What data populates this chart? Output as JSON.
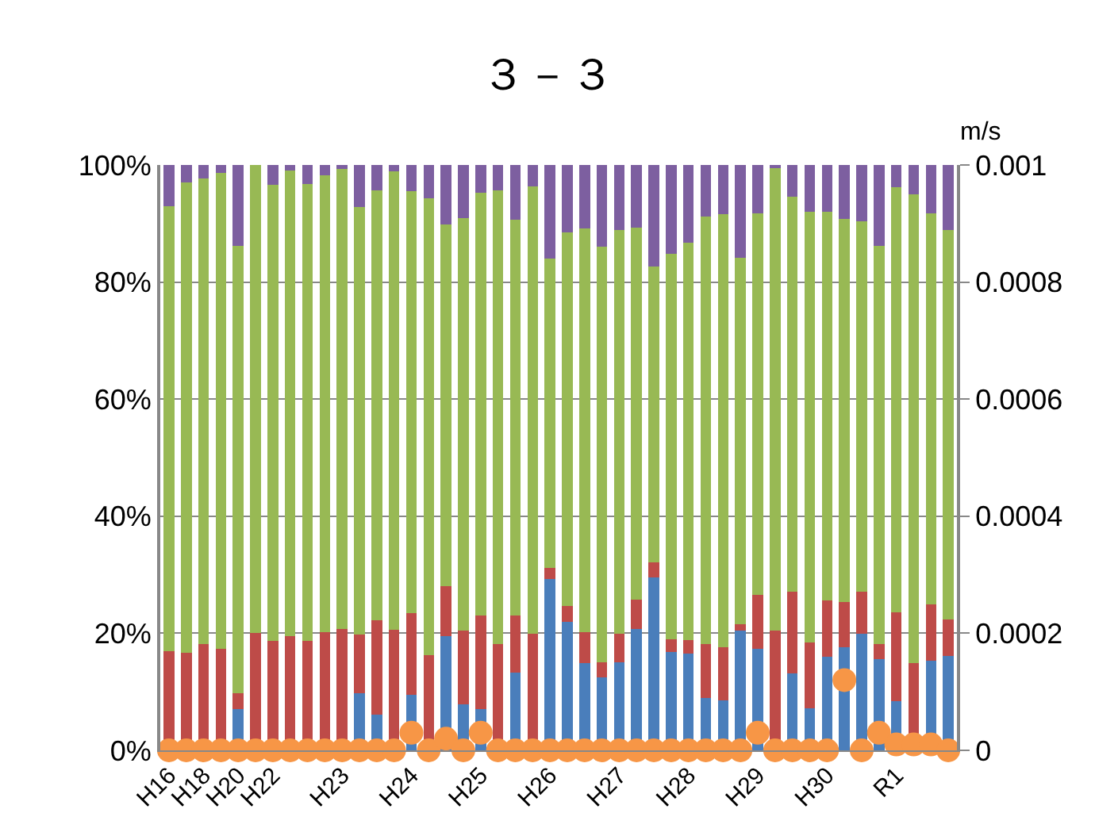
{
  "chart_data": {
    "type": "bar",
    "stacked": true,
    "title": "３－３",
    "y2label": "m/s",
    "categories": [
      "H16",
      null,
      "H18",
      null,
      "H20",
      null,
      "H22",
      null,
      null,
      null,
      "H23",
      null,
      null,
      null,
      "H24",
      null,
      null,
      null,
      "H25",
      null,
      null,
      null,
      "H26",
      null,
      null,
      null,
      "H27",
      null,
      null,
      null,
      "H28",
      null,
      null,
      null,
      "H29",
      null,
      null,
      null,
      "H30",
      null,
      null,
      null,
      "R1",
      null,
      null,
      null
    ],
    "series": [
      {
        "color": "#4a7ebb",
        "values": [
          0,
          0,
          0,
          0,
          7.0,
          0,
          0,
          0,
          0,
          0,
          0,
          9.7,
          6.1,
          0,
          9.5,
          0,
          19.5,
          7.9,
          7.1,
          0,
          13.3,
          0,
          29.3,
          22.0,
          14.9,
          12.5,
          15.1,
          20.8,
          29.5,
          16.8,
          16.6,
          9.0,
          8.6,
          20.4,
          17.4,
          0,
          13.1,
          7.2,
          16.0,
          17.6,
          19.9,
          15.6,
          8.4,
          0,
          15.3,
          16.1
        ]
      },
      {
        "color": "#be4b48",
        "values": [
          16.9,
          16.7,
          18.1,
          17.4,
          2.7,
          20.1,
          18.7,
          19.5,
          18.7,
          20.2,
          20.8,
          10.1,
          16.1,
          20.6,
          14.0,
          16.3,
          8.5,
          12.5,
          16.0,
          18.1,
          9.8,
          19.9,
          1.8,
          2.7,
          5.3,
          2.6,
          4.8,
          4.9,
          2.6,
          2.2,
          2.2,
          9.1,
          9.0,
          1.2,
          9.1,
          20.4,
          14.0,
          11.2,
          9.6,
          7.7,
          7.2,
          2.5,
          15.2,
          14.9,
          9.6,
          6.3
        ]
      },
      {
        "color": "#98b954",
        "values": [
          76.1,
          80.3,
          79.6,
          81.2,
          76.5,
          79.9,
          77.9,
          79.6,
          78.0,
          78.0,
          78.5,
          73.0,
          73.5,
          78.3,
          72.0,
          78.0,
          61.8,
          70.5,
          72.2,
          77.6,
          67.6,
          76.5,
          52.9,
          63.8,
          68.9,
          70.9,
          69.0,
          63.6,
          50.5,
          65.8,
          67.9,
          73.1,
          74.0,
          62.6,
          65.3,
          79.1,
          67.5,
          73.6,
          66.4,
          65.5,
          63.3,
          68.1,
          72.6,
          80.1,
          66.9,
          66.5
        ]
      },
      {
        "color": "#7d5fa0",
        "values": [
          7.0,
          3.0,
          2.3,
          1.4,
          13.8,
          0,
          3.4,
          0.9,
          3.3,
          1.8,
          0.7,
          7.2,
          4.3,
          1.1,
          4.5,
          5.7,
          10.2,
          9.1,
          4.7,
          4.3,
          9.3,
          3.6,
          16.0,
          11.5,
          10.9,
          14.0,
          11.1,
          10.7,
          17.4,
          15.2,
          13.3,
          8.8,
          8.4,
          15.8,
          8.2,
          0.5,
          5.4,
          8.0,
          8.0,
          9.2,
          9.6,
          13.8,
          3.8,
          5.0,
          8.2,
          11.1
        ]
      },
      {
        "type": "scatter",
        "axis": "y2",
        "color": "#f79646",
        "marker": "circle",
        "values": [
          0,
          0,
          0,
          0,
          0,
          0,
          0,
          0,
          0,
          0,
          0,
          0,
          0,
          0,
          3e-05,
          0,
          2e-05,
          0,
          3e-05,
          0,
          0,
          0,
          0,
          0,
          0,
          0,
          0,
          0,
          0,
          0,
          0,
          0,
          0,
          0,
          3e-05,
          0,
          0,
          0,
          0,
          0.00012,
          0,
          3e-05,
          1e-05,
          1e-05,
          1e-05,
          0
        ]
      }
    ],
    "ylim": [
      0,
      100
    ],
    "yticks": [
      {
        "value": 0,
        "label": "0%"
      },
      {
        "value": 20,
        "label": "20%"
      },
      {
        "value": 40,
        "label": "40%"
      },
      {
        "value": 60,
        "label": "60%"
      },
      {
        "value": 80,
        "label": "80%"
      },
      {
        "value": 100,
        "label": "100%"
      }
    ],
    "y2lim": [
      0,
      0.001
    ],
    "y2ticks": [
      0,
      0.0002,
      0.0004,
      0.0006,
      0.0008,
      0.001
    ],
    "grid": "y"
  }
}
